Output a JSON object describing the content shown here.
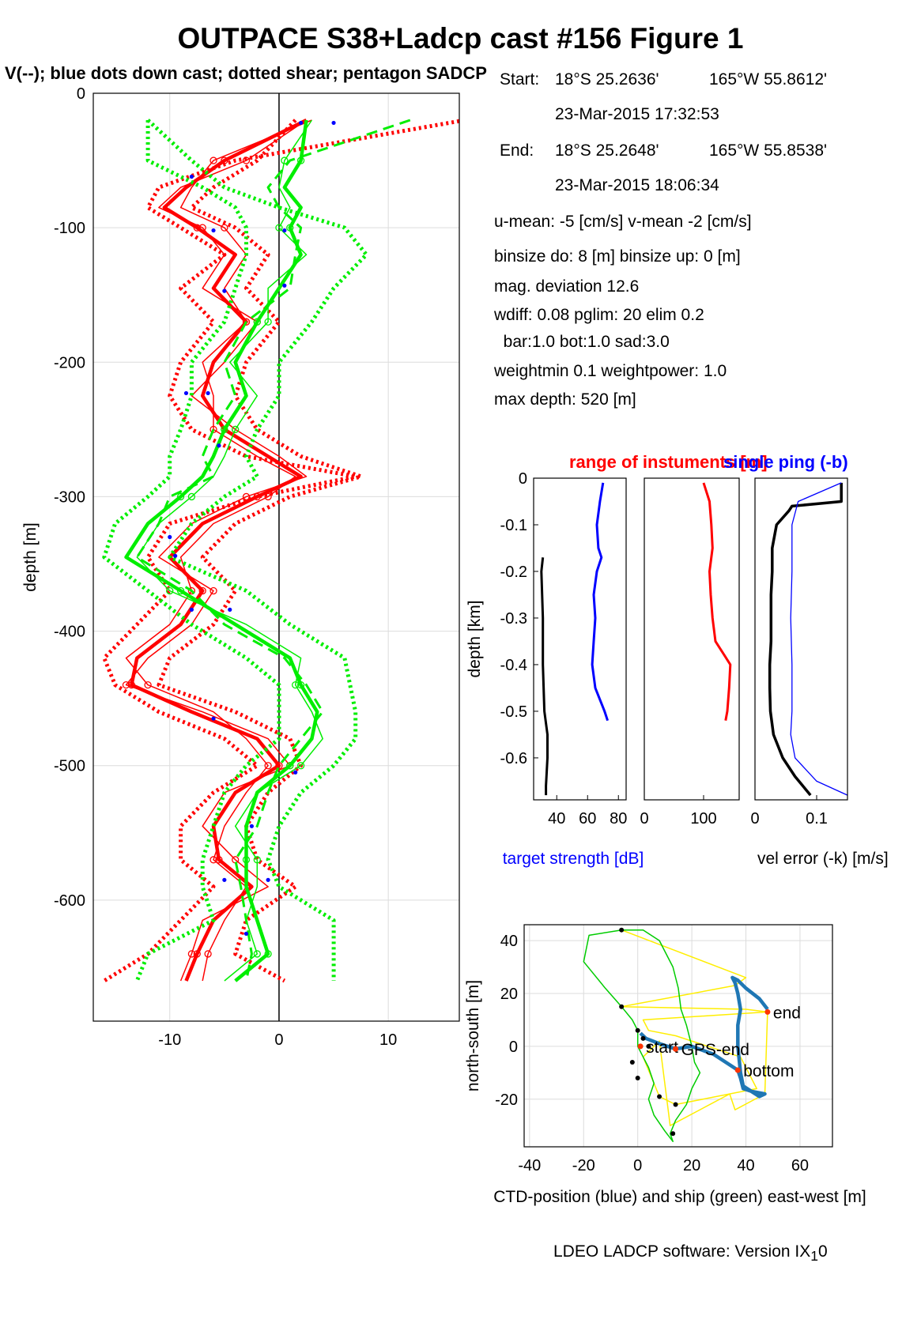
{
  "page": {
    "title": "OUTPACE S38+Ladcp cast #156  Figure 1",
    "subtitle": "V(--); blue dots down cast; dotted shear; pentagon SADCP",
    "footer": "LDEO LADCP software: Version IX",
    "footer_sub": "1",
    "footer_end": "0"
  },
  "info": {
    "start_label": "Start:",
    "start_lat": "18°S 25.2636'",
    "start_lon": "165°W 55.8612'",
    "start_time": "23-Mar-2015 17:32:53",
    "end_label": "End:",
    "end_lat": "18°S 25.2648'",
    "end_lon": "165°W 55.8538'",
    "end_time": "23-Mar-2015 18:06:34",
    "means": "u-mean:  -5 [cm/s]    v-mean  -2 [cm/s]",
    "binsize": "binsize do: 8 [m]  binsize up:  0 [m]",
    "magdev": "mag. deviation 12.6",
    "wdiff": "wdiff: 0.08  pglim: 20  elim 0.2",
    "bar": "  bar:1.0 bot:1.0 sad:3.0",
    "weight": "weightmin 0.1  weightpower: 1.0",
    "maxdepth": "max depth: 520 [m]"
  },
  "chart_data": [
    {
      "type": "line",
      "name": "velocity-profile",
      "xlabel": "",
      "ylabel": "depth [m]",
      "xlim": [
        -17,
        16.5
      ],
      "ylim": [
        -690,
        0
      ],
      "xticks": [
        -10,
        0,
        10
      ],
      "yticks": [
        0,
        -100,
        -200,
        -300,
        -400,
        -500,
        -600
      ],
      "grid": true,
      "colors": {
        "u": "#ff0000",
        "v": "#00ee00",
        "downcast": "#0000ff",
        "zero": "#000000"
      },
      "depth": [
        -20,
        -50,
        -70,
        -85,
        -100,
        -120,
        -145,
        -170,
        -200,
        -225,
        -250,
        -270,
        -285,
        -300,
        -320,
        -345,
        -370,
        -395,
        -420,
        -440,
        -460,
        -480,
        -500,
        -520,
        -545,
        -570,
        -590,
        -615,
        -640,
        -660
      ],
      "series": [
        {
          "key": "u",
          "style": "thick",
          "values": [
            2.5,
            -5,
            -8.5,
            -10.5,
            -7.5,
            -4,
            -6,
            -3,
            -6,
            -7,
            -5,
            -1,
            2,
            -2,
            -7,
            -10,
            -7,
            -9,
            -13,
            -13.5,
            -8,
            -2,
            0,
            -4,
            -6,
            -5.5,
            -2.5,
            -6,
            -7.5,
            -8.5
          ]
        },
        {
          "key": "u",
          "style": "thin",
          "values": [
            2.5,
            -3,
            -9,
            -11,
            -7,
            -5,
            -7,
            -2,
            -5,
            -8,
            -4,
            0,
            2.5,
            -3,
            -8,
            -11,
            -6,
            -8,
            -12,
            -14,
            -7,
            -1,
            1,
            -5,
            -7,
            -4,
            -1,
            -7,
            -8,
            -9
          ]
        },
        {
          "key": "u",
          "style": "thin",
          "values": [
            3,
            -6,
            -8,
            -9,
            -5,
            -3,
            -5,
            -3,
            -7,
            -6,
            -6,
            -2,
            1.5,
            -1,
            -6,
            -9,
            -8,
            -10,
            -14,
            -12,
            -6,
            -3,
            -1,
            -3,
            -5,
            -6,
            -3,
            -5,
            -6.5,
            -7
          ]
        },
        {
          "key": "u",
          "style": "dotted",
          "values": [
            17,
            -4,
            -11,
            -12,
            -9,
            -5,
            -9,
            -6,
            -9,
            -10,
            -8,
            -3,
            7,
            -2,
            -10,
            -12,
            -10,
            -13,
            -16,
            -15,
            -11,
            -5,
            -2,
            -6,
            -9,
            -9,
            -6,
            -9,
            -12,
            -16
          ]
        },
        {
          "key": "u",
          "style": "dotted",
          "values": [
            1.5,
            -2,
            -6,
            -8,
            -4,
            -1,
            -3,
            0,
            -3,
            -4,
            -2,
            2,
            7.5,
            1,
            -4,
            -7,
            -4,
            -6,
            -10,
            -11,
            -4,
            1,
            2,
            -1,
            -3,
            -2,
            1.5,
            -3,
            -4,
            0.5
          ]
        },
        {
          "key": "v",
          "style": "thick",
          "values": [
            2.5,
            2,
            0.5,
            2,
            1,
            2,
            0,
            -2,
            -4,
            -3,
            -5,
            -6,
            -7,
            -9,
            -12,
            -14,
            -9,
            -4,
            1,
            2,
            3.5,
            3,
            1,
            -2,
            -3,
            -3,
            -3,
            -2,
            -1,
            -4
          ]
        },
        {
          "key": "v",
          "style": "dashed",
          "values": [
            12,
            1,
            -1,
            0,
            2,
            1.5,
            1,
            -3,
            -5,
            -4,
            -6,
            -7,
            -6,
            -10,
            -11,
            -13,
            -8,
            -5,
            0.5,
            2.5,
            4,
            2,
            0,
            -1,
            -2,
            -4,
            -3.5,
            -3,
            -2.5,
            -3
          ]
        },
        {
          "key": "v",
          "style": "thin",
          "values": [
            3,
            0.5,
            0,
            1,
            0,
            2.5,
            -1,
            -1,
            -4.5,
            -2,
            -4,
            -5,
            -6,
            -8,
            -11,
            -13,
            -10,
            -3,
            2,
            1.5,
            3,
            4,
            2,
            -2,
            -4,
            -2,
            -2,
            -3,
            -2,
            -5
          ]
        },
        {
          "key": "v",
          "style": "dotted",
          "values": [
            -12,
            -8,
            -5,
            0,
            6,
            8,
            5,
            3,
            0,
            0,
            -2,
            -3,
            -2,
            -5,
            -8,
            -10,
            -3,
            1,
            6,
            6.5,
            7,
            7,
            5,
            2,
            0,
            -1,
            0,
            5,
            5,
            5
          ]
        },
        {
          "key": "v",
          "style": "dotted",
          "values": [
            -12,
            -12,
            -7,
            -4,
            -3,
            -3,
            -4,
            -5,
            -8,
            -8,
            -9,
            -10,
            -10,
            -12,
            -15,
            -16,
            -12,
            -8,
            -3,
            0,
            0,
            0,
            -3,
            -5,
            -6,
            -7,
            -7,
            -6,
            -12,
            -13
          ]
        }
      ],
      "downcast_points": [
        [
          2,
          -22
        ],
        [
          5,
          -22
        ],
        [
          -8,
          -62
        ],
        [
          -6,
          -102
        ],
        [
          0.5,
          -102
        ],
        [
          -5,
          -147
        ],
        [
          0.5,
          -143
        ],
        [
          -8.5,
          -223
        ],
        [
          -6.5,
          -223
        ],
        [
          -5.5,
          -262
        ],
        [
          -10,
          -330
        ],
        [
          -9.5,
          -344
        ],
        [
          -8,
          -384
        ],
        [
          -4.5,
          -384
        ],
        [
          -6,
          -465
        ],
        [
          1.5,
          -505
        ],
        [
          -2.5,
          -545
        ],
        [
          -5,
          -585
        ],
        [
          -1,
          -585
        ],
        [
          -3,
          -625
        ]
      ]
    },
    {
      "type": "line",
      "name": "target-strength",
      "xlabel": "target strength [dB]",
      "ylabel": "depth [km]",
      "xlim": [
        25,
        85
      ],
      "ylim": [
        -0.69,
        0
      ],
      "xticks": [
        40,
        60,
        80
      ],
      "yticks": [
        0,
        -0.1,
        -0.2,
        -0.3,
        -0.4,
        -0.5,
        -0.6
      ],
      "series": [
        {
          "color": "#0000ff",
          "depth": [
            -0.01,
            -0.05,
            -0.1,
            -0.15,
            -0.17,
            -0.2,
            -0.25,
            -0.3,
            -0.35,
            -0.4,
            -0.45,
            -0.5,
            -0.52
          ],
          "values": [
            70,
            68,
            66,
            67,
            69,
            66,
            64,
            65,
            64,
            63,
            65,
            71,
            73
          ]
        },
        {
          "color": "#000000",
          "depth": [
            -0.17,
            -0.2,
            -0.3,
            -0.4,
            -0.5,
            -0.55,
            -0.6,
            -0.66,
            -0.68
          ],
          "values": [
            31,
            30,
            31,
            31,
            32,
            34,
            34,
            33,
            33
          ]
        }
      ]
    },
    {
      "type": "line",
      "name": "range-of-instrument",
      "xlabel": "",
      "ylabel": "",
      "title": "range of instuments [m]",
      "xlim": [
        0,
        160
      ],
      "ylim": [
        -0.69,
        0
      ],
      "xticks": [
        0,
        100
      ],
      "series": [
        {
          "color": "#ff0000",
          "depth": [
            -0.01,
            -0.05,
            -0.1,
            -0.15,
            -0.2,
            -0.25,
            -0.3,
            -0.35,
            -0.38,
            -0.4,
            -0.45,
            -0.5,
            -0.52
          ],
          "values": [
            100,
            110,
            113,
            115,
            110,
            112,
            115,
            120,
            135,
            145,
            143,
            140,
            137
          ]
        }
      ]
    },
    {
      "type": "line",
      "name": "velocity-error",
      "xlabel": "vel error (-k) [m/s]",
      "ylabel": "",
      "title": "single ping (-b)",
      "xlim": [
        0,
        0.15
      ],
      "ylim": [
        -0.69,
        0
      ],
      "xticks": [
        0,
        0.1
      ],
      "series": [
        {
          "color": "#000000",
          "depth": [
            -0.01,
            -0.05,
            -0.06,
            -0.07,
            -0.1,
            -0.15,
            -0.2,
            -0.25,
            -0.3,
            -0.35,
            -0.4,
            -0.45,
            -0.5,
            -0.55,
            -0.6,
            -0.64,
            -0.68
          ],
          "values": [
            0.14,
            0.14,
            0.06,
            0.055,
            0.035,
            0.028,
            0.028,
            0.026,
            0.026,
            0.026,
            0.024,
            0.024,
            0.025,
            0.03,
            0.045,
            0.065,
            0.09
          ]
        },
        {
          "color": "#0000ff",
          "depth": [
            -0.01,
            -0.05,
            -0.1,
            -0.2,
            -0.3,
            -0.4,
            -0.5,
            -0.55,
            -0.6,
            -0.65,
            -0.68
          ],
          "values": [
            0.14,
            0.07,
            0.06,
            0.06,
            0.058,
            0.06,
            0.06,
            0.058,
            0.065,
            0.1,
            0.15
          ]
        }
      ]
    },
    {
      "type": "line",
      "name": "ship-ctd-track",
      "xlabel": "CTD-position (blue) and ship (green) east-west [m]",
      "ylabel": "north-south [m]",
      "xlim": [
        -42,
        72
      ],
      "ylim": [
        -38,
        46
      ],
      "xticks": [
        -40,
        -20,
        0,
        20,
        40,
        60
      ],
      "yticks": [
        40,
        20,
        0,
        -20
      ],
      "series": [
        {
          "name": "ship",
          "color": "#00cc00",
          "x": [
            -6,
            -18,
            -20,
            -12,
            -6,
            -2,
            0,
            0,
            2,
            4,
            6,
            4,
            6,
            10,
            13,
            12,
            14,
            18,
            20,
            23,
            21,
            20,
            18,
            16,
            15,
            13,
            10,
            8,
            2,
            -6
          ],
          "y": [
            44,
            42,
            32,
            22,
            15,
            10,
            6,
            0,
            -4,
            -8,
            -14,
            -20,
            -26,
            -32,
            -36,
            -33,
            -28,
            -22,
            -16,
            -10,
            -6,
            0,
            8,
            14,
            22,
            30,
            36,
            40,
            44,
            44
          ]
        },
        {
          "name": "ctd",
          "color": "#1f77b4",
          "x": [
            1,
            3,
            8,
            14,
            20,
            28,
            37,
            38,
            39,
            42,
            45,
            47,
            42,
            39,
            38,
            37,
            37,
            38,
            37,
            36,
            35,
            37,
            40,
            45,
            48
          ],
          "y": [
            5,
            3,
            1,
            -1,
            0,
            -3,
            -9,
            -12,
            -16,
            -17,
            -19,
            -18,
            -17,
            -15,
            -10,
            0,
            8,
            14,
            20,
            24,
            26,
            25,
            22,
            18,
            14
          ]
        },
        {
          "name": "yellow",
          "color": "#ffee00",
          "x": [
            -6,
            40,
            36,
            -6,
            40,
            48,
            2,
            4,
            14,
            38,
            44,
            14,
            8,
            2,
            8,
            12,
            34,
            36,
            47,
            48
          ],
          "y": [
            44,
            26,
            23,
            15,
            14,
            13,
            10,
            6,
            4,
            -4,
            -16,
            -22,
            -19,
            -4,
            2,
            -30,
            -18,
            -24,
            -18,
            13
          ]
        }
      ],
      "markers": [
        {
          "label": "end",
          "x": 48,
          "y": 13
        },
        {
          "label": "start",
          "x": 1,
          "y": 0
        },
        {
          "label": "GPS-end",
          "x": 14,
          "y": -1
        },
        {
          "label": "bottom",
          "x": 37,
          "y": -9
        }
      ],
      "black_points": [
        [
          -6,
          44
        ],
        [
          -6,
          15
        ],
        [
          0,
          6
        ],
        [
          2,
          3
        ],
        [
          4,
          0
        ],
        [
          -2,
          -6
        ],
        [
          0,
          -12
        ],
        [
          8,
          -19
        ],
        [
          14,
          -22
        ],
        [
          13,
          -33
        ]
      ]
    }
  ]
}
